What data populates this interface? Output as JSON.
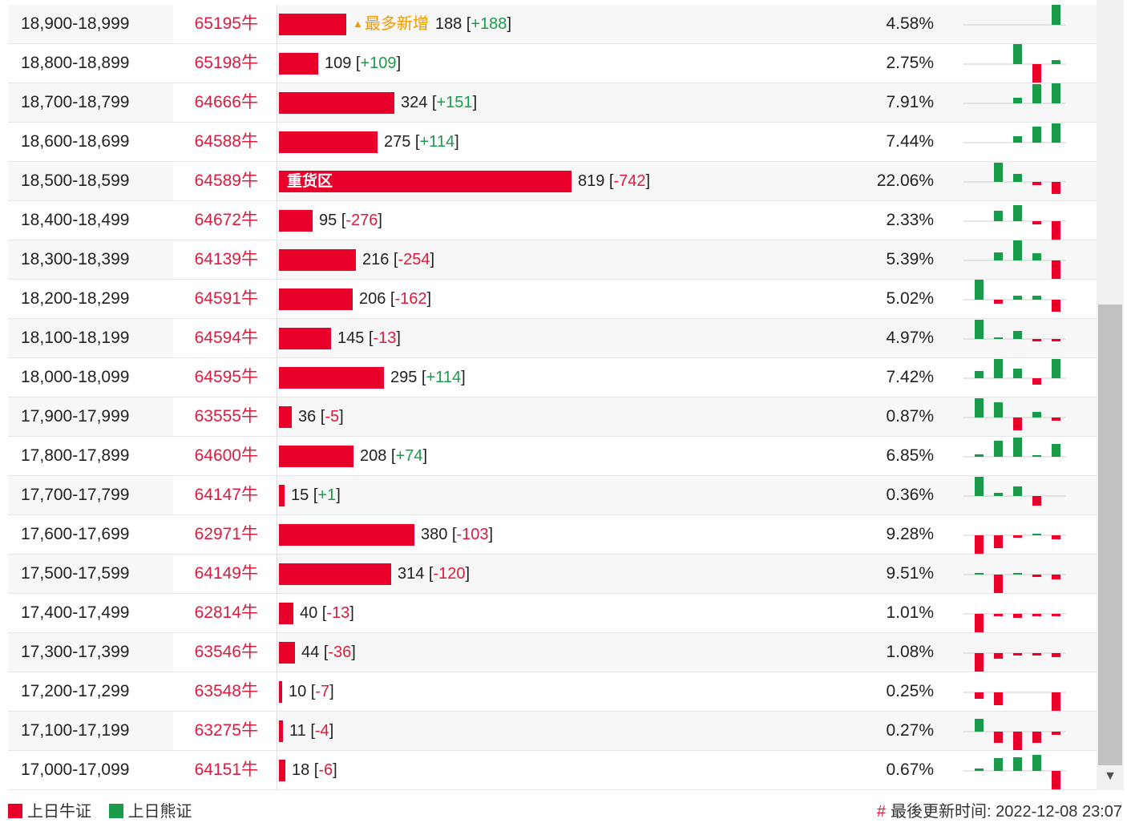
{
  "colors": {
    "bull": "#e8002a",
    "bear": "#1a9b4b",
    "hot": "#f29a00",
    "code_text": "#e01a3c"
  },
  "bar_scale_max": 819,
  "rows": [
    {
      "range": "18,900-18,999",
      "code": "65195牛",
      "count": "188",
      "delta": "+188",
      "pct": "4.58%",
      "hot_label": "最多新增",
      "spark": [
        0,
        0,
        0,
        0,
        27
      ]
    },
    {
      "range": "18,800-18,899",
      "code": "65198牛",
      "count": "109",
      "delta": "+109",
      "pct": "2.75%",
      "spark": [
        0,
        0,
        26,
        -26,
        5
      ]
    },
    {
      "range": "18,700-18,799",
      "code": "64666牛",
      "count": "324",
      "delta": "+151",
      "pct": "7.91%",
      "spark": [
        0,
        0,
        7,
        24,
        25
      ]
    },
    {
      "range": "18,600-18,699",
      "code": "64588牛",
      "count": "275",
      "delta": "+114",
      "pct": "7.44%",
      "spark": [
        0,
        0,
        8,
        20,
        24
      ]
    },
    {
      "range": "18,500-18,599",
      "code": "64589牛",
      "count": "819",
      "delta": "-742",
      "pct": "22.06%",
      "tag": "重货区",
      "spark": [
        0,
        24,
        10,
        -4,
        -15
      ]
    },
    {
      "range": "18,400-18,499",
      "code": "64672牛",
      "count": "95",
      "delta": "-276",
      "pct": "2.33%",
      "spark": [
        0,
        13,
        20,
        -4,
        -25
      ]
    },
    {
      "range": "18,300-18,399",
      "code": "64139牛",
      "count": "216",
      "delta": "-254",
      "pct": "5.39%",
      "spark": [
        0,
        10,
        25,
        9,
        -24
      ]
    },
    {
      "range": "18,200-18,299",
      "code": "64591牛",
      "count": "206",
      "delta": "-162",
      "pct": "5.02%",
      "spark": [
        25,
        -5,
        5,
        5,
        -15
      ]
    },
    {
      "range": "18,100-18,199",
      "code": "64594牛",
      "count": "145",
      "delta": "-13",
      "pct": "4.97%",
      "spark": [
        24,
        2,
        10,
        -3,
        -3
      ]
    },
    {
      "range": "18,000-18,099",
      "code": "64595牛",
      "count": "295",
      "delta": "+114",
      "pct": "7.42%",
      "spark": [
        9,
        24,
        12,
        -8,
        24
      ]
    },
    {
      "range": "17,900-17,999",
      "code": "63555牛",
      "count": "36",
      "delta": "-5",
      "pct": "0.87%",
      "spark": [
        24,
        19,
        -16,
        7,
        -4
      ]
    },
    {
      "range": "17,800-17,899",
      "code": "64600牛",
      "count": "208",
      "delta": "+74",
      "pct": "6.85%",
      "spark": [
        3,
        20,
        24,
        2,
        16
      ]
    },
    {
      "range": "17,700-17,799",
      "code": "64147牛",
      "count": "15",
      "delta": "+1",
      "pct": "0.36%",
      "spark": [
        24,
        4,
        12,
        -12,
        0
      ]
    },
    {
      "range": "17,600-17,699",
      "code": "62971牛",
      "count": "380",
      "delta": "-103",
      "pct": "9.28%",
      "spark": [
        -24,
        -16,
        -3,
        2,
        -5
      ]
    },
    {
      "range": "17,500-17,599",
      "code": "64149牛",
      "count": "314",
      "delta": "-120",
      "pct": "9.51%",
      "spark": [
        2,
        -24,
        2,
        -3,
        -6
      ]
    },
    {
      "range": "17,400-17,499",
      "code": "62814牛",
      "count": "40",
      "delta": "-13",
      "pct": "1.01%",
      "spark": [
        -24,
        -3,
        -5,
        -3,
        -3
      ]
    },
    {
      "range": "17,300-17,399",
      "code": "63546牛",
      "count": "44",
      "delta": "-36",
      "pct": "1.08%",
      "spark": [
        -24,
        -7,
        -3,
        -3,
        -5
      ]
    },
    {
      "range": "17,200-17,299",
      "code": "63548牛",
      "count": "10",
      "delta": "-7",
      "pct": "0.25%",
      "spark": [
        -8,
        -16,
        0,
        0,
        -24
      ]
    },
    {
      "range": "17,100-17,199",
      "code": "63275牛",
      "count": "11",
      "delta": "-4",
      "pct": "0.27%",
      "spark": [
        16,
        -14,
        -24,
        -14,
        -4
      ]
    },
    {
      "range": "17,000-17,099",
      "code": "64151牛",
      "count": "18",
      "delta": "-6",
      "pct": "0.67%",
      "spark": [
        3,
        16,
        17,
        20,
        -24
      ]
    }
  ],
  "legend": {
    "bull_label": "上日牛证",
    "bear_label": "上日熊证"
  },
  "footer": {
    "hash": "#",
    "updated_label": "最後更新时间:",
    "updated_time": "2022-12-08 23:07"
  },
  "scrollbar": {
    "down_icon": "▼"
  }
}
